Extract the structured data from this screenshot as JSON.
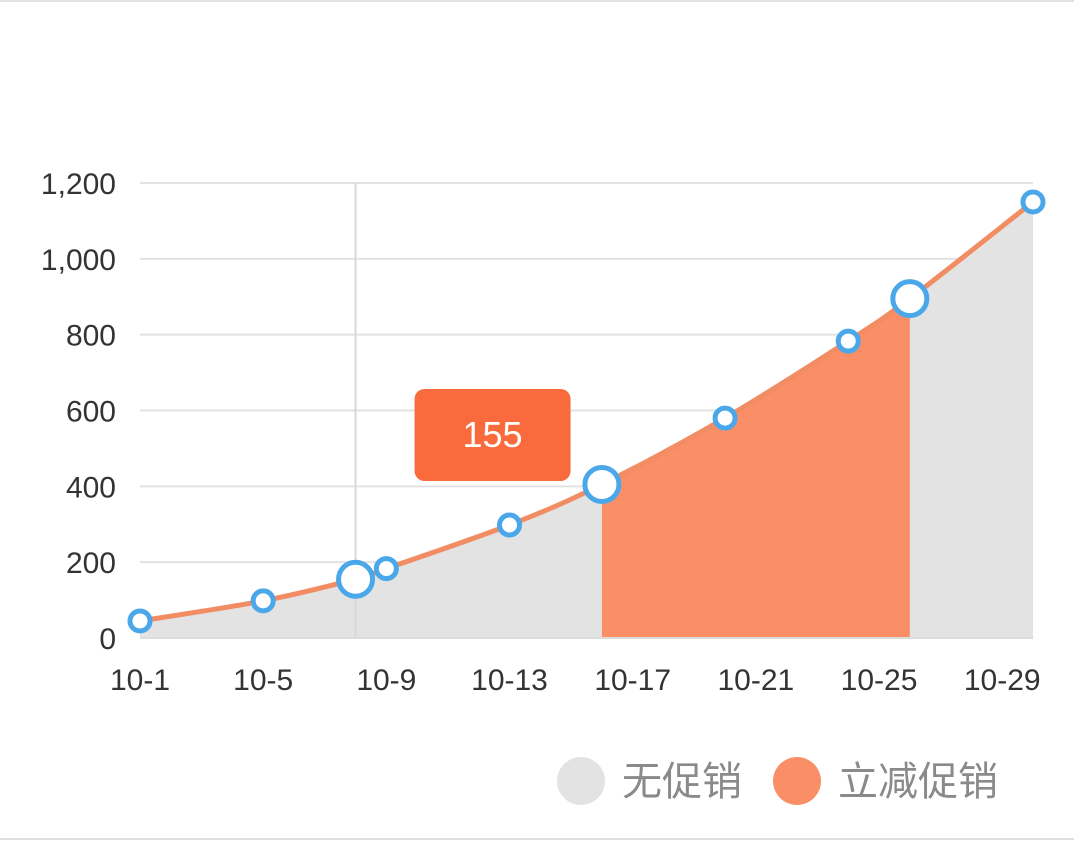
{
  "chart_data": {
    "type": "area",
    "x_labels": [
      "10-1",
      "10-5",
      "10-9",
      "10-13",
      "10-17",
      "10-21",
      "10-25",
      "10-29"
    ],
    "x": [
      1,
      5,
      8,
      9,
      13,
      16,
      20,
      24,
      26,
      30
    ],
    "y": [
      45,
      98,
      155,
      183,
      298,
      405,
      580,
      783,
      895,
      1150
    ],
    "ylim": [
      0,
      1200
    ],
    "y_ticks": [
      0,
      200,
      400,
      600,
      800,
      1000,
      1200
    ],
    "y_tick_labels": [
      "0",
      "200",
      "400",
      "600",
      "800",
      "1,000",
      "1,200"
    ],
    "xlim": [
      1,
      30
    ],
    "grid": "horizontal",
    "highlighted_range": [
      16,
      26
    ],
    "legend_position": "bottom-right",
    "series": [
      {
        "name": "无促销",
        "color": "#e3e3e3"
      },
      {
        "name": "立减促销",
        "color": "#fa8f67"
      }
    ],
    "line_color": "#f28c63",
    "marker_color": "#4aa8ea",
    "tooltip": {
      "x": 8,
      "label": "155",
      "color": "#f96b3c"
    }
  }
}
